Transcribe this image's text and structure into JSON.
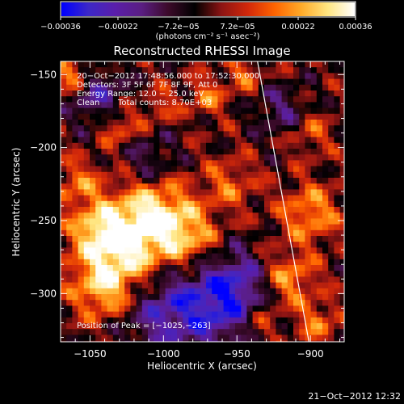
{
  "chart_data": {
    "type": "heatmap",
    "title": "Reconstructed RHESSI Image",
    "xlabel": "Heliocentric X (arcsec)",
    "ylabel": "Heliocentric Y (arcsec)",
    "xlim": [
      -1070,
      -877
    ],
    "ylim": [
      -333,
      -141
    ],
    "x_ticks": [
      -1050,
      -1000,
      -950,
      -900
    ],
    "y_ticks": [
      -300,
      -250,
      -200,
      -150
    ],
    "x_tick_labels": [
      "−1050",
      "−1000",
      "−950",
      "−900"
    ],
    "y_tick_labels": [
      "−300",
      "−250",
      "−200",
      "−150"
    ],
    "colorbar": {
      "range": [
        -0.00036,
        0.00036
      ],
      "tick_labels": [
        "−0.00036",
        "−0.00022",
        "−7.2e−05",
        "7.2e−05",
        "0.00022",
        "0.00036"
      ],
      "unit_label": "(photons cm⁻² s⁻¹ asec⁻²)",
      "colors": [
        "#0000ff",
        "#3c28c8",
        "#5a1eaa",
        "#5a1e82",
        "#3c0a2a",
        "#000000",
        "#8c1414",
        "#d2280a",
        "#ff6400",
        "#ffaa28",
        "#ffe682",
        "#ffffff"
      ]
    },
    "annotations": [
      "20−Oct−2012 17:48:56.000 to 17:52:30.000",
      "Detectors: 3F 5F 6F 7F 8F 9F, Att 0",
      "Energy Range: 12.0 − 25.0 keV",
      "Clean",
      "Total counts: 8.70E+03",
      "Position of Peak = [−1025,−263]"
    ],
    "peak": {
      "x": -1025,
      "y": -263
    },
    "limb_line": [
      [
        -936,
        -141
      ],
      [
        -901,
        -333
      ]
    ],
    "grid": false
  },
  "footer": {
    "timestamp": "21−Oct−2012 12:32"
  }
}
